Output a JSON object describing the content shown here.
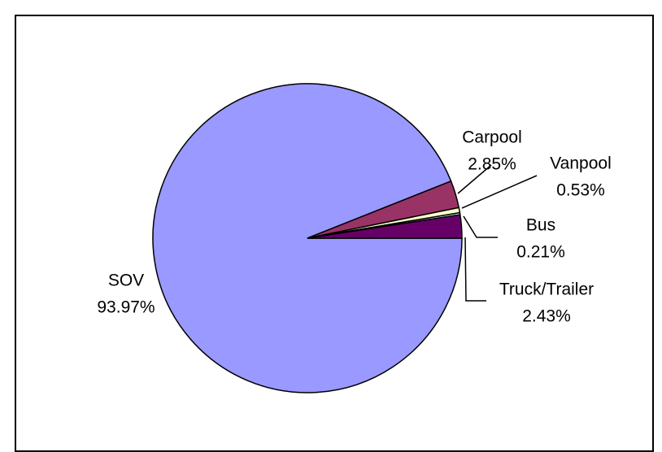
{
  "chart_data": {
    "type": "pie",
    "categories": [
      "SOV",
      "Carpool",
      "Vanpool",
      "Bus",
      "Truck/Trailer"
    ],
    "values": [
      93.97,
      2.85,
      0.53,
      0.21,
      2.43
    ],
    "value_labels": [
      "93.97%",
      "2.85%",
      "0.53%",
      "0.21%",
      "2.43%"
    ],
    "colors": [
      "#9999ff",
      "#993366",
      "#ffffcc",
      "#ccffff",
      "#660066"
    ]
  }
}
